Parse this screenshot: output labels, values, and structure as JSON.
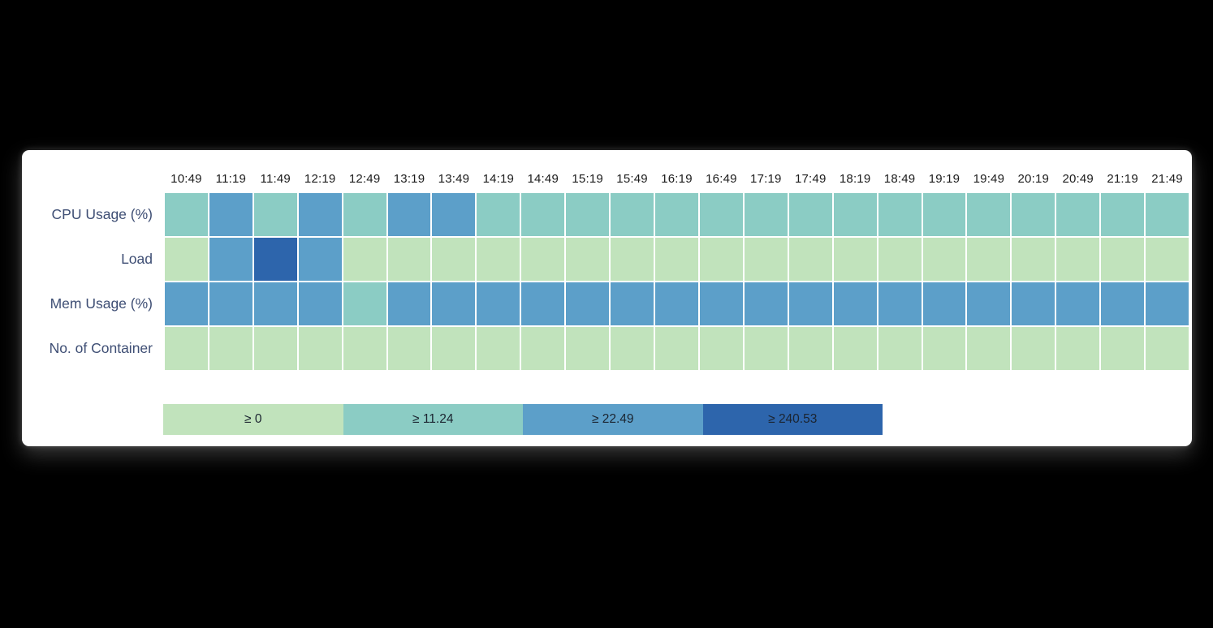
{
  "chart_data": {
    "type": "heatmap",
    "x": [
      "10:49",
      "11:19",
      "11:49",
      "12:19",
      "12:49",
      "13:19",
      "13:49",
      "14:19",
      "14:49",
      "15:19",
      "15:49",
      "16:19",
      "16:49",
      "17:19",
      "17:49",
      "18:19",
      "18:49",
      "19:19",
      "19:49",
      "20:19",
      "20:49",
      "21:19",
      "21:49"
    ],
    "rows": [
      "CPU Usage (%)",
      "Load",
      "Mem Usage (%)",
      "No. of Container"
    ],
    "series": [
      {
        "name": "CPU Usage (%)",
        "buckets": [
          1,
          2,
          1,
          2,
          1,
          2,
          2,
          1,
          1,
          1,
          1,
          1,
          1,
          1,
          1,
          1,
          1,
          1,
          1,
          1,
          1,
          1,
          1
        ]
      },
      {
        "name": "Load",
        "buckets": [
          0,
          2,
          3,
          2,
          0,
          0,
          0,
          0,
          0,
          0,
          0,
          0,
          0,
          0,
          0,
          0,
          0,
          0,
          0,
          0,
          0,
          0,
          0
        ]
      },
      {
        "name": "Mem Usage (%)",
        "buckets": [
          2,
          2,
          2,
          2,
          1,
          2,
          2,
          2,
          2,
          2,
          2,
          2,
          2,
          2,
          2,
          2,
          2,
          2,
          2,
          2,
          2,
          2,
          2
        ]
      },
      {
        "name": "No. of Container",
        "buckets": [
          0,
          0,
          0,
          0,
          0,
          0,
          0,
          0,
          0,
          0,
          0,
          0,
          0,
          0,
          0,
          0,
          0,
          0,
          0,
          0,
          0,
          0,
          0
        ]
      }
    ],
    "palette": [
      "#c1e3bc",
      "#8bccc4",
      "#5c9fc9",
      "#2d65ac"
    ],
    "legend": [
      {
        "label": "≥ 0",
        "color": "#c1e3bc"
      },
      {
        "label": "≥ 11.24",
        "color": "#8bccc4"
      },
      {
        "label": "≥ 22.49",
        "color": "#5c9fc9"
      },
      {
        "label": "≥ 240.53",
        "color": "#2d65ac"
      }
    ],
    "legend_position": "bottom",
    "grid": "white-gaps",
    "title": "",
    "xlabel": "",
    "ylabel": ""
  },
  "colors": {
    "page_background": "#000000",
    "card_background": "#ffffff",
    "row_label_text": "#3e4e74",
    "column_header_text": "#1c1c1c",
    "legend_text": "#1b2430"
  }
}
